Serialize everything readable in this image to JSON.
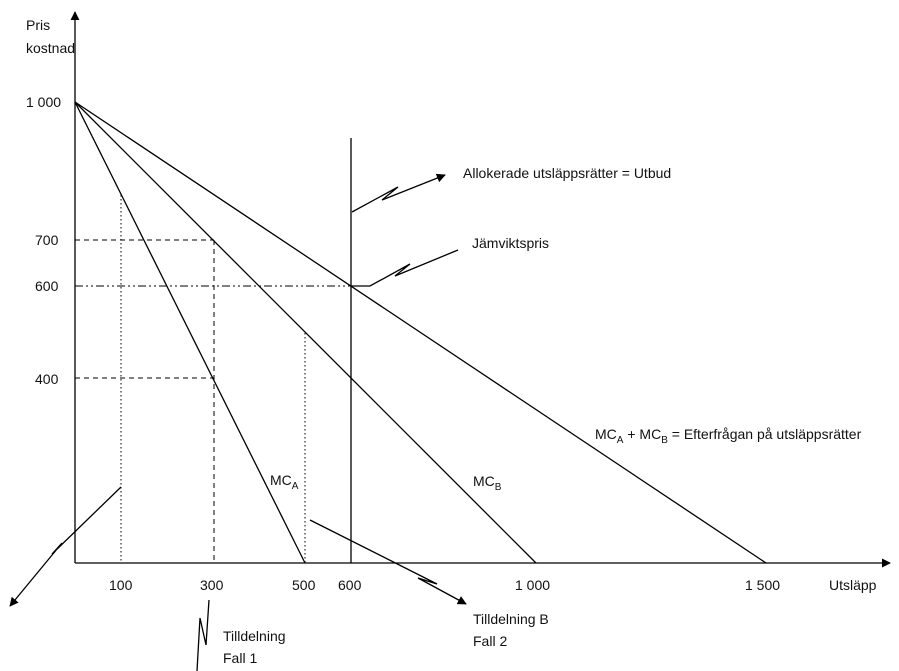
{
  "chart_data": {
    "type": "line",
    "y_axis_label_line1": "Pris",
    "y_axis_label_line2": "kostnad",
    "x_axis_label": "Utsläpp",
    "y_ticks": [
      "1 000",
      "700",
      "600",
      "400"
    ],
    "x_ticks": [
      "100",
      "300",
      "500",
      "600",
      "1 000",
      "1 500"
    ],
    "series": [
      {
        "name": "MC_A",
        "x": [
          0,
          500
        ],
        "y": [
          1000,
          0
        ]
      },
      {
        "name": "MC_B",
        "x": [
          0,
          1000
        ],
        "y": [
          1000,
          0
        ]
      },
      {
        "name": "MC_A + MC_B",
        "x": [
          0,
          1500
        ],
        "y": [
          1000,
          0
        ]
      }
    ],
    "supply_line_x": 600,
    "equilibrium_price": 600,
    "reference_lines": [
      {
        "style": "dashed",
        "price": 700,
        "x": 300
      },
      {
        "style": "dashed",
        "price": 400,
        "x": 300
      },
      {
        "style": "dotted",
        "x": 100
      },
      {
        "style": "dotted",
        "x": 500
      }
    ]
  },
  "labels": {
    "mca_main": "MC",
    "mca_sub": "A",
    "mcb_main": "MC",
    "mcb_sub": "B",
    "sum_mc1": "MC",
    "sum_sub1": "A",
    "sum_plus": " + MC",
    "sum_sub2": "B",
    "sum_rest": " = Efterfrågan på utsläppsrätter",
    "supply": "Allokerade utsläppsrätter = Utbud",
    "equilibrium": "Jämviktspris",
    "case_b_line1": "Tilldelning B",
    "case_b_line2": "Fall 2",
    "case1_line1": "Tilldelning",
    "case1_line2": "Fall 1"
  }
}
